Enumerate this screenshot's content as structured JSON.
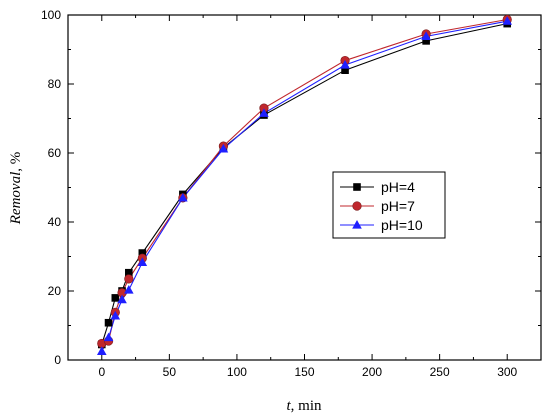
{
  "chart_data": {
    "type": "line",
    "xlabel_italic": "t",
    "xlabel_rest": ", min",
    "ylabel_italic": "Removal",
    "ylabel_rest": ", %",
    "xlim": [
      -25,
      325
    ],
    "ylim": [
      0,
      100
    ],
    "xticks": [
      0,
      50,
      100,
      150,
      200,
      250,
      300
    ],
    "yticks": [
      0,
      20,
      40,
      60,
      80,
      100
    ],
    "grid": false,
    "legend_position": "center-right",
    "x": [
      0,
      5,
      10,
      15,
      20,
      30,
      60,
      90,
      120,
      180,
      240,
      300
    ],
    "series": [
      {
        "name": "pH=4",
        "color": "#000000",
        "marker": "square",
        "values": [
          4.5,
          10.8,
          18.0,
          20.0,
          25.3,
          31.0,
          48.0,
          61.5,
          71.0,
          84.0,
          92.5,
          97.5
        ]
      },
      {
        "name": "pH=7",
        "color": "#c0272d",
        "marker": "circle",
        "values": [
          4.8,
          5.5,
          13.8,
          19.5,
          23.5,
          29.5,
          47.0,
          62.0,
          73.0,
          86.8,
          94.5,
          98.7
        ]
      },
      {
        "name": "pH=10",
        "color": "#1f1fff",
        "marker": "triangle",
        "values": [
          2.5,
          6.5,
          12.8,
          17.5,
          20.3,
          28.3,
          47.0,
          61.2,
          71.5,
          85.5,
          93.8,
          98.2
        ]
      }
    ]
  }
}
